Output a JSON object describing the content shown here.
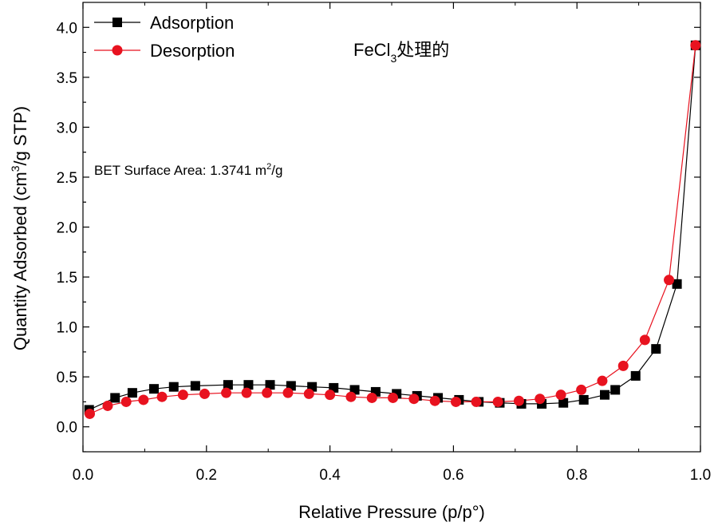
{
  "chart_data": {
    "type": "line",
    "title": "",
    "xlabel": "Relative Pressure (p/p°)",
    "ylabel": {
      "before": "Quantity Adsorbed (cm",
      "sup": "3",
      "after": "/g STP)"
    },
    "xlim": [
      0.0,
      1.0
    ],
    "ylim": [
      -0.25,
      4.25
    ],
    "x_ticks": [
      0.0,
      0.2,
      0.4,
      0.6,
      0.8,
      1.0
    ],
    "x_tick_labels": [
      "0.0",
      "0.2",
      "0.4",
      "0.6",
      "0.8",
      "1.0"
    ],
    "y_ticks": [
      0.0,
      0.5,
      1.0,
      1.5,
      2.0,
      2.5,
      3.0,
      3.5,
      4.0
    ],
    "y_tick_labels": [
      "0.0",
      "0.5",
      "1.0",
      "1.5",
      "2.0",
      "2.5",
      "3.0",
      "3.5",
      "4.0"
    ],
    "grid": false,
    "legend_position": "top-left",
    "annotations": {
      "sample": {
        "before": "FeCl",
        "sub": "3",
        "after": "处理的"
      },
      "bet": {
        "before": "BET Surface Area: 1.3741 m",
        "sup": "2",
        "after": "/g"
      }
    },
    "series": [
      {
        "name": "Adsorption",
        "color": "#000000",
        "marker": "square",
        "x": [
          0.01,
          0.052,
          0.08,
          0.115,
          0.147,
          0.182,
          0.235,
          0.268,
          0.303,
          0.337,
          0.371,
          0.406,
          0.44,
          0.474,
          0.508,
          0.541,
          0.575,
          0.609,
          0.641,
          0.675,
          0.71,
          0.743,
          0.778,
          0.811,
          0.845,
          0.862,
          0.895,
          0.928,
          0.962,
          0.992
        ],
        "y": [
          0.17,
          0.29,
          0.34,
          0.38,
          0.4,
          0.41,
          0.42,
          0.42,
          0.42,
          0.41,
          0.4,
          0.39,
          0.37,
          0.35,
          0.33,
          0.31,
          0.29,
          0.27,
          0.25,
          0.24,
          0.23,
          0.23,
          0.24,
          0.27,
          0.32,
          0.37,
          0.51,
          0.78,
          1.43,
          3.82
        ]
      },
      {
        "name": "Desorption",
        "color": "#e8121f",
        "marker": "circle",
        "x": [
          0.011,
          0.04,
          0.07,
          0.098,
          0.128,
          0.162,
          0.197,
          0.232,
          0.265,
          0.298,
          0.332,
          0.366,
          0.4,
          0.434,
          0.468,
          0.502,
          0.536,
          0.57,
          0.604,
          0.637,
          0.672,
          0.706,
          0.74,
          0.774,
          0.807,
          0.841,
          0.875,
          0.91,
          0.949,
          0.992
        ],
        "y": [
          0.13,
          0.21,
          0.25,
          0.27,
          0.3,
          0.32,
          0.33,
          0.34,
          0.34,
          0.34,
          0.34,
          0.33,
          0.32,
          0.3,
          0.29,
          0.29,
          0.28,
          0.26,
          0.25,
          0.25,
          0.25,
          0.26,
          0.28,
          0.32,
          0.37,
          0.46,
          0.61,
          0.87,
          1.47,
          3.82
        ]
      }
    ]
  }
}
